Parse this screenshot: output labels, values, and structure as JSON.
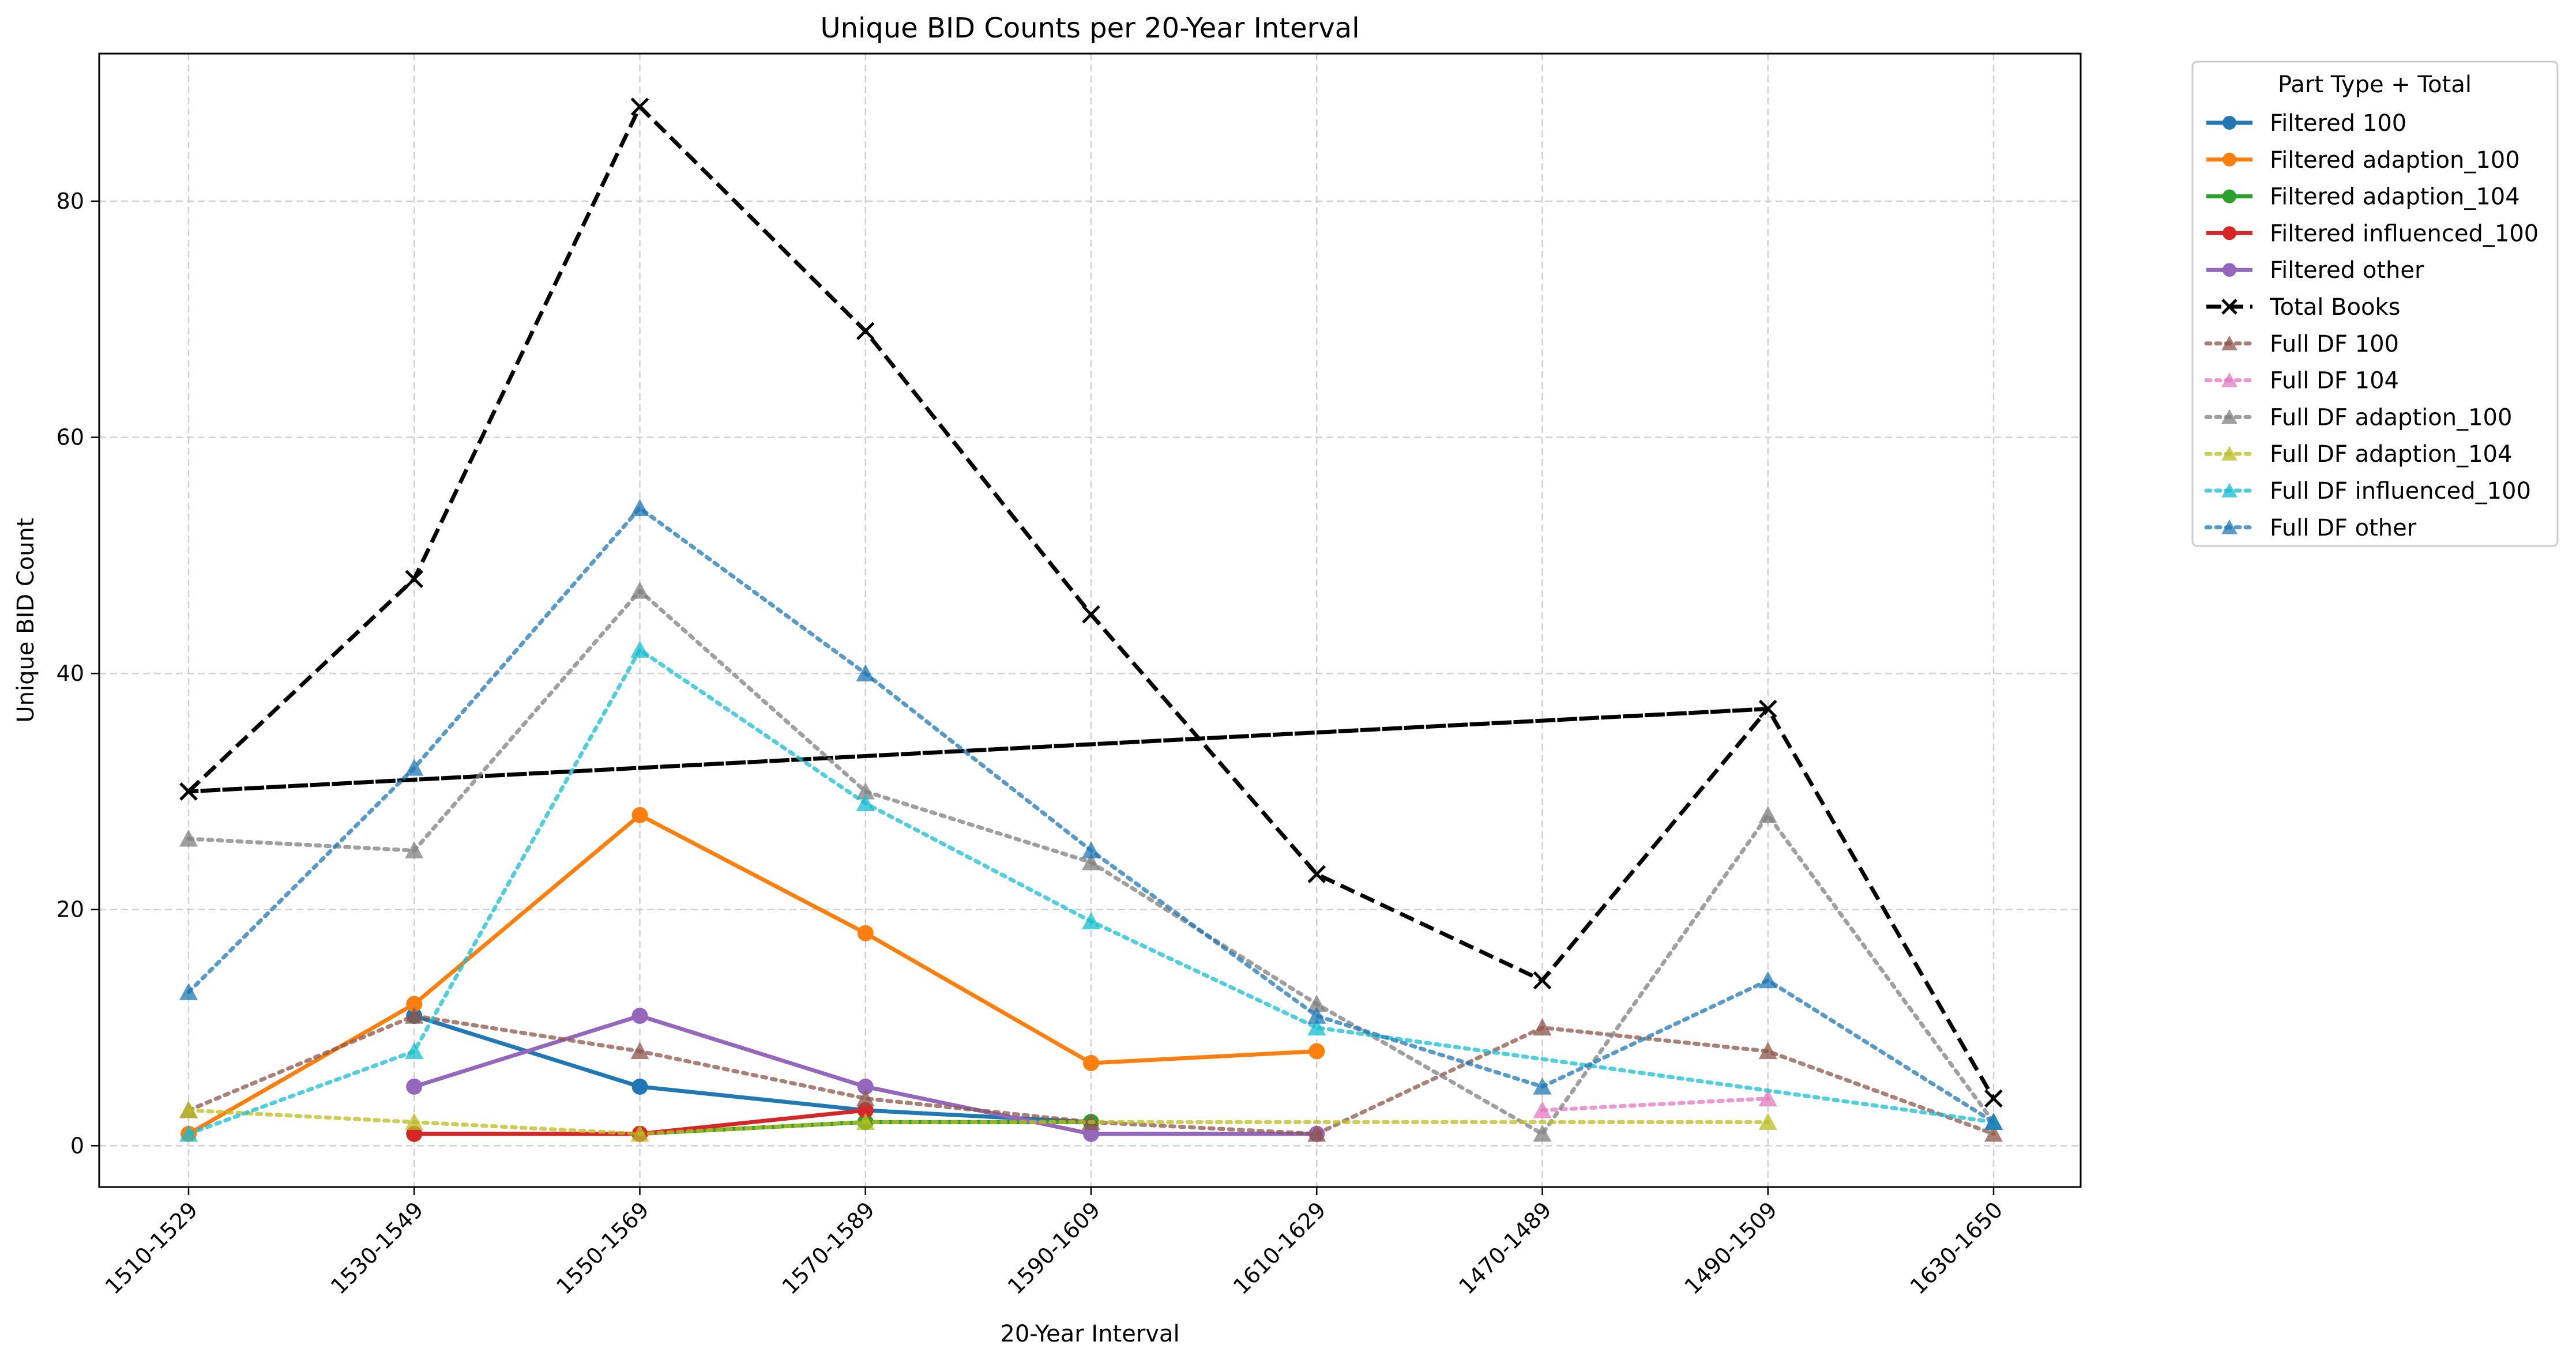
{
  "chart_data": {
    "type": "line",
    "title": "Unique BID Counts per 20-Year Interval",
    "xlabel": "20-Year Interval",
    "ylabel": "Unique BID Count",
    "categories": [
      "1510-1529",
      "1530-1549",
      "1550-1569",
      "1570-1589",
      "1590-1609",
      "1610-1629",
      "1470-1489",
      "1490-1509",
      "1630-1650"
    ],
    "ylim": [
      -3.5,
      92.5
    ],
    "yticks": [
      0,
      20,
      40,
      60,
      80
    ],
    "grid": true,
    "legend_title": "Part Type + Total",
    "legend_position": "outside-right",
    "series": [
      {
        "name": "Filtered 100",
        "color": "#1f77b4",
        "style": "solid",
        "marker": "circle",
        "points": [
          [
            "1530-1549",
            11
          ],
          [
            "1550-1569",
            5
          ],
          [
            "1570-1589",
            3
          ],
          [
            "1590-1609",
            2
          ]
        ]
      },
      {
        "name": "Filtered adaption_100",
        "color": "#ff7f0e",
        "style": "solid",
        "marker": "circle",
        "points": [
          [
            "1510-1529",
            1
          ],
          [
            "1530-1549",
            12
          ],
          [
            "1550-1569",
            28
          ],
          [
            "1570-1589",
            18
          ],
          [
            "1590-1609",
            7
          ],
          [
            "1610-1629",
            8
          ]
        ]
      },
      {
        "name": "Filtered adaption_104",
        "color": "#2ca02c",
        "style": "solid",
        "marker": "circle",
        "points": [
          [
            "1550-1569",
            1
          ],
          [
            "1570-1589",
            2
          ],
          [
            "1590-1609",
            2
          ]
        ]
      },
      {
        "name": "Filtered influenced_100",
        "color": "#d62728",
        "style": "solid",
        "marker": "circle",
        "points": [
          [
            "1530-1549",
            1
          ],
          [
            "1550-1569",
            1
          ],
          [
            "1570-1589",
            3
          ]
        ]
      },
      {
        "name": "Filtered other",
        "color": "#9467bd",
        "style": "solid",
        "marker": "circle",
        "points": [
          [
            "1530-1549",
            5
          ],
          [
            "1550-1569",
            11
          ],
          [
            "1570-1589",
            5
          ],
          [
            "1590-1609",
            1
          ],
          [
            "1610-1629",
            1
          ]
        ]
      },
      {
        "name": "Total Books",
        "color": "#000000",
        "style": "dashed",
        "marker": "x",
        "points": [
          [
            "1510-1529",
            30
          ],
          [
            "1530-1549",
            48
          ],
          [
            "1550-1569",
            88
          ],
          [
            "1570-1589",
            69
          ],
          [
            "1590-1609",
            45
          ],
          [
            "1610-1629",
            23
          ],
          [
            "1470-1489",
            14
          ],
          [
            "1490-1509",
            37
          ],
          [
            "1510-1529",
            30
          ],
          [
            "1490-1509",
            37
          ],
          [
            "1630-1650",
            4
          ]
        ]
      },
      {
        "name": "Full DF 100",
        "color": "#8c564b",
        "style": "dotted",
        "marker": "triangle",
        "points": [
          [
            "1510-1529",
            3
          ],
          [
            "1530-1549",
            11
          ],
          [
            "1550-1569",
            8
          ],
          [
            "1570-1589",
            4
          ],
          [
            "1590-1609",
            2
          ],
          [
            "1610-1629",
            1
          ],
          [
            "1470-1489",
            10
          ],
          [
            "1490-1509",
            8
          ],
          [
            "1630-1650",
            1
          ]
        ]
      },
      {
        "name": "Full DF 104",
        "color": "#e377c2",
        "style": "dotted",
        "marker": "triangle",
        "points": [
          [
            "1470-1489",
            3
          ],
          [
            "1490-1509",
            4
          ]
        ]
      },
      {
        "name": "Full DF adaption_100",
        "color": "#7f7f7f",
        "style": "dotted",
        "marker": "triangle",
        "points": [
          [
            "1510-1529",
            26
          ],
          [
            "1530-1549",
            25
          ],
          [
            "1550-1569",
            47
          ],
          [
            "1570-1589",
            30
          ],
          [
            "1590-1609",
            24
          ],
          [
            "1610-1629",
            12
          ],
          [
            "1470-1489",
            1
          ],
          [
            "1490-1509",
            28
          ],
          [
            "1630-1650",
            2
          ]
        ]
      },
      {
        "name": "Full DF adaption_104",
        "color": "#bcbd22",
        "style": "dotted",
        "marker": "triangle",
        "points": [
          [
            "1510-1529",
            3
          ],
          [
            "1530-1549",
            2
          ],
          [
            "1550-1569",
            1
          ],
          [
            "1570-1589",
            2
          ],
          [
            "1490-1509",
            2
          ]
        ]
      },
      {
        "name": "Full DF influenced_100",
        "color": "#17becf",
        "style": "dotted",
        "marker": "triangle",
        "points": [
          [
            "1510-1529",
            1
          ],
          [
            "1530-1549",
            8
          ],
          [
            "1550-1569",
            42
          ],
          [
            "1570-1589",
            29
          ],
          [
            "1590-1609",
            19
          ],
          [
            "1610-1629",
            10
          ],
          [
            "1630-1650",
            2
          ]
        ]
      },
      {
        "name": "Full DF other",
        "color": "#1f77b4",
        "style": "dotted",
        "marker": "triangle",
        "points": [
          [
            "1510-1529",
            13
          ],
          [
            "1530-1549",
            32
          ],
          [
            "1550-1569",
            54
          ],
          [
            "1570-1589",
            40
          ],
          [
            "1590-1609",
            25
          ],
          [
            "1610-1629",
            11
          ],
          [
            "1470-1489",
            5
          ],
          [
            "1490-1509",
            14
          ],
          [
            "1630-1650",
            2
          ]
        ]
      }
    ]
  }
}
